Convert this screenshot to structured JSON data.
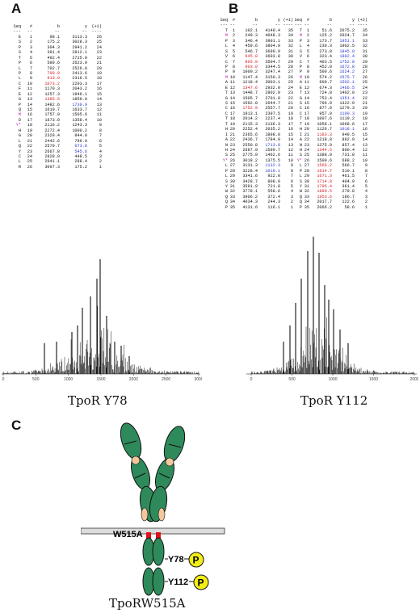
{
  "panels": {
    "A": {
      "label": "A",
      "caption": "TpoR Y78",
      "headers": [
        "Seq",
        "#",
        "b",
        "y",
        "(+1)"
      ],
      "rows": [
        [
          "E",
          "1",
          "98.1",
          "3113.3",
          "26"
        ],
        [
          "S",
          "2",
          "175.2",
          "3028.3",
          "25"
        ],
        [
          "P",
          "3",
          "304.3",
          "2941.2",
          "24"
        ],
        [
          "S",
          "4",
          "391.4",
          "2812.1",
          "23"
        ],
        [
          "T",
          "5",
          "492.4",
          "2725.0",
          "22"
        ],
        [
          "P",
          "6",
          "589.6",
          "2623.9",
          "21"
        ],
        [
          "L",
          "7",
          "702.7",
          "2526.8",
          "20"
        ],
        [
          "P",
          "8",
          "799.9",
          "2413.6",
          "19"
        ],
        [
          "L",
          "9",
          "913.0",
          "2316.5",
          "18"
        ],
        [
          "C",
          "10",
          "1073.2",
          "2203.3",
          "17"
        ],
        [
          "F",
          "11",
          "1170.3",
          "2043.2",
          "16"
        ],
        [
          "E",
          "12",
          "1257.3",
          "1946.1",
          "15"
        ],
        [
          "G",
          "13",
          "1385.5",
          "1859.0",
          "14"
        ],
        [
          "P",
          "14",
          "1482.6",
          "1730.9",
          "13"
        ],
        [
          "Q",
          "15",
          "1610.7",
          "1633.7",
          "12"
        ],
        [
          "M",
          "16",
          "1757.9",
          "1505.6",
          "11"
        ],
        [
          "D",
          "17",
          "1873.0",
          "1358.4",
          "10"
        ],
        [
          "Y*",
          "18",
          "2116.2",
          "1243.3",
          "9"
        ],
        [
          "H",
          "19",
          "2272.4",
          "1000.2",
          "8"
        ],
        [
          "G",
          "20",
          "2329.4",
          "844.0",
          "7"
        ],
        [
          "L",
          "21",
          "2442.6",
          "786.9",
          "6"
        ],
        [
          "Q",
          "22",
          "2570.7",
          "673.8",
          "5"
        ],
        [
          "Y",
          "23",
          "2667.8",
          "545.6",
          "4"
        ],
        [
          "C",
          "24",
          "2828.0",
          "448.5",
          "3"
        ],
        [
          "L",
          "25",
          "2941.1",
          "288.4",
          "2"
        ],
        [
          "R",
          "26",
          "3097.3",
          "175.2",
          "1"
        ]
      ],
      "axis_ticks": [
        "0",
        "500",
        "1000",
        "1500",
        "2000",
        "2500",
        "3000"
      ]
    },
    "B": {
      "label": "B",
      "caption": "TpoR Y112",
      "headers": [
        "Seq",
        "#",
        "b",
        "y",
        "(+1)",
        "Seq",
        "#",
        "b",
        "y",
        "(+2)"
      ],
      "rows": [
        [
          "T",
          "1",
          "102.1",
          "4149.4",
          "35",
          "T",
          "1",
          "51.6",
          "2075.2",
          "35"
        ],
        [
          "M",
          "2",
          "249.3",
          "4048.3",
          "34",
          "M",
          "2",
          "125.2",
          "2024.7",
          "34"
        ],
        [
          "P",
          "3",
          "346.4",
          "3901.1",
          "33",
          "P",
          "3",
          "173.7",
          "1951.1",
          "33"
        ],
        [
          "L",
          "4",
          "459.6",
          "3804.0",
          "32",
          "L",
          "4",
          "230.3",
          "1902.5",
          "32"
        ],
        [
          "S",
          "5",
          "546.7",
          "3690.9",
          "31",
          "S",
          "5",
          "273.8",
          "1845.9",
          "31"
        ],
        [
          "V",
          "6",
          "645.8",
          "3603.8",
          "30",
          "V",
          "6",
          "323.4",
          "1802.4",
          "30"
        ],
        [
          "C",
          "7",
          "805.9",
          "3504.7",
          "29",
          "C",
          "7",
          "403.5",
          "1752.8",
          "29"
        ],
        [
          "P",
          "8",
          "903.0",
          "3344.5",
          "28",
          "P",
          "8",
          "452.0",
          "1672.8",
          "28"
        ],
        [
          "P",
          "9",
          "1000.2",
          "3247.4",
          "27",
          "P",
          "9",
          "500.6",
          "1624.2",
          "27"
        ],
        [
          "M",
          "10",
          "1147.4",
          "3150.3",
          "26",
          "M",
          "10",
          "574.2",
          "1575.7",
          "26"
        ],
        [
          "A",
          "11",
          "1218.4",
          "3003.1",
          "25",
          "A",
          "11",
          "609.7",
          "1502.1",
          "25"
        ],
        [
          "E",
          "12",
          "1347.6",
          "2932.0",
          "24",
          "E",
          "12",
          "674.3",
          "1466.5",
          "24"
        ],
        [
          "T",
          "13",
          "1448.7",
          "2802.9",
          "23",
          "T",
          "13",
          "724.8",
          "1402.0",
          "23"
        ],
        [
          "G",
          "14",
          "1505.7",
          "2701.8",
          "22",
          "G",
          "14",
          "753.4",
          "1351.4",
          "22"
        ],
        [
          "S",
          "15",
          "1592.8",
          "2644.7",
          "21",
          "S",
          "15",
          "796.9",
          "1322.9",
          "21"
        ],
        [
          "C",
          "16",
          "1752.9",
          "2557.7",
          "20",
          "C",
          "16",
          "877.0",
          "1279.3",
          "20"
        ],
        [
          "C",
          "17",
          "1913.1",
          "2397.5",
          "19",
          "C",
          "17",
          "957.0",
          "1199.3",
          "19"
        ],
        [
          "T",
          "18",
          "2014.2",
          "2237.4",
          "18",
          "T",
          "18",
          "1007.6",
          "1119.2",
          "18"
        ],
        [
          "T",
          "19",
          "2115.3",
          "2136.3",
          "17",
          "T",
          "19",
          "1058.1",
          "1068.6",
          "17"
        ],
        [
          "H",
          "20",
          "2252.4",
          "2035.2",
          "16",
          "H",
          "20",
          "1126.7",
          "1018.1",
          "16"
        ],
        [
          "I",
          "21",
          "2365.6",
          "1898.0",
          "15",
          "I",
          "21",
          "1183.3",
          "949.5",
          "15"
        ],
        [
          "A",
          "22",
          "2436.7",
          "1784.9",
          "14",
          "A",
          "22",
          "1218.8",
          "892.9",
          "14"
        ],
        [
          "N",
          "23",
          "2550.8",
          "1713.8",
          "13",
          "N",
          "23",
          "1275.9",
          "857.4",
          "13"
        ],
        [
          "H",
          "24",
          "2687.9",
          "1599.7",
          "12",
          "H",
          "24",
          "1344.5",
          "800.4",
          "12"
        ],
        [
          "S",
          "25",
          "2775.0",
          "1462.6",
          "11",
          "S",
          "25",
          "1388.0",
          "731.8",
          "11"
        ],
        [
          "Y*",
          "26",
          "3018.2",
          "1375.5",
          "10",
          "Y*",
          "26",
          "1509.6",
          "688.2",
          "10"
        ],
        [
          "L",
          "27",
          "3131.3",
          "1132.3",
          "9",
          "L",
          "27",
          "1566.2",
          "566.7",
          "9"
        ],
        [
          "P",
          "28",
          "3228.4",
          "1019.1",
          "8",
          "P",
          "28",
          "1614.7",
          "510.1",
          "8"
        ],
        [
          "L",
          "29",
          "3341.6",
          "922.0",
          "7",
          "L",
          "29",
          "1671.3",
          "461.5",
          "7"
        ],
        [
          "S",
          "30",
          "3428.7",
          "808.9",
          "6",
          "S",
          "30",
          "1714.8",
          "404.9",
          "6"
        ],
        [
          "Y",
          "31",
          "3591.9",
          "721.8",
          "5",
          "Y",
          "31",
          "1796.4",
          "361.4",
          "5"
        ],
        [
          "W",
          "32",
          "3778.1",
          "558.6",
          "4",
          "W",
          "32",
          "1889.5",
          "279.8",
          "4"
        ],
        [
          "Q",
          "33",
          "3906.2",
          "372.4",
          "3",
          "Q",
          "33",
          "1953.6",
          "186.7",
          "3"
        ],
        [
          "Q",
          "34",
          "4034.3",
          "244.3",
          "2",
          "Q",
          "34",
          "2017.7",
          "122.6",
          "2"
        ],
        [
          "P",
          "35",
          "4131.6",
          "116.1",
          "1",
          "P",
          "35",
          "2066.2",
          "58.6",
          "1"
        ]
      ],
      "axis_ticks": [
        "0",
        "500",
        "1000",
        "1500",
        "2000"
      ]
    },
    "C": {
      "label": "C",
      "mutation_label": "W515A",
      "site1": "Y78",
      "site2": "Y112",
      "phospho": "P",
      "caption": "TpoRW515A"
    }
  },
  "colors": {
    "red": "#d1222a",
    "blue": "#2a3bd1",
    "magenta": "#c21ea3",
    "domain_green": "#2f8a5b",
    "domain_tan": "#f2c79b",
    "phospho_yellow": "#f3ee16"
  }
}
